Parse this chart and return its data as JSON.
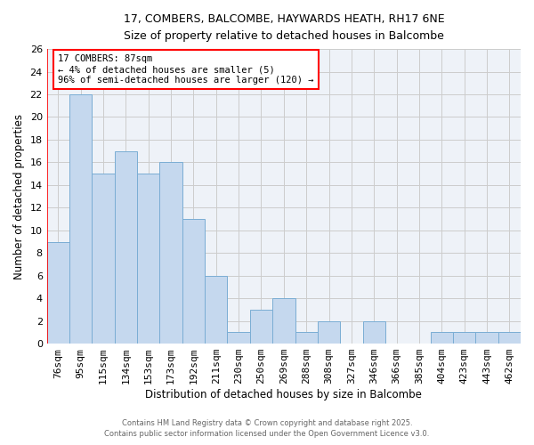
{
  "title1": "17, COMBERS, BALCOMBE, HAYWARDS HEATH, RH17 6NE",
  "title2": "Size of property relative to detached houses in Balcombe",
  "xlabel": "Distribution of detached houses by size in Balcombe",
  "ylabel": "Number of detached properties",
  "categories": [
    "76sqm",
    "95sqm",
    "115sqm",
    "134sqm",
    "153sqm",
    "173sqm",
    "192sqm",
    "211sqm",
    "230sqm",
    "250sqm",
    "269sqm",
    "288sqm",
    "308sqm",
    "327sqm",
    "346sqm",
    "366sqm",
    "385sqm",
    "404sqm",
    "423sqm",
    "443sqm",
    "462sqm"
  ],
  "values": [
    9,
    22,
    15,
    17,
    15,
    16,
    11,
    6,
    1,
    3,
    4,
    1,
    2,
    0,
    2,
    0,
    0,
    1,
    1,
    1,
    1
  ],
  "bar_color": "#c5d8ee",
  "bar_edge_color": "#7aadd4",
  "grid_color": "#cccccc",
  "bg_color": "#eef2f8",
  "annotation_text": "17 COMBERS: 87sqm\n← 4% of detached houses are smaller (5)\n96% of semi-detached houses are larger (120) →",
  "annotation_box_color": "white",
  "annotation_box_edge": "red",
  "ylim": [
    0,
    26
  ],
  "yticks": [
    0,
    2,
    4,
    6,
    8,
    10,
    12,
    14,
    16,
    18,
    20,
    22,
    24,
    26
  ],
  "footnote1": "Contains HM Land Registry data © Crown copyright and database right 2025.",
  "footnote2": "Contains public sector information licensed under the Open Government Licence v3.0."
}
